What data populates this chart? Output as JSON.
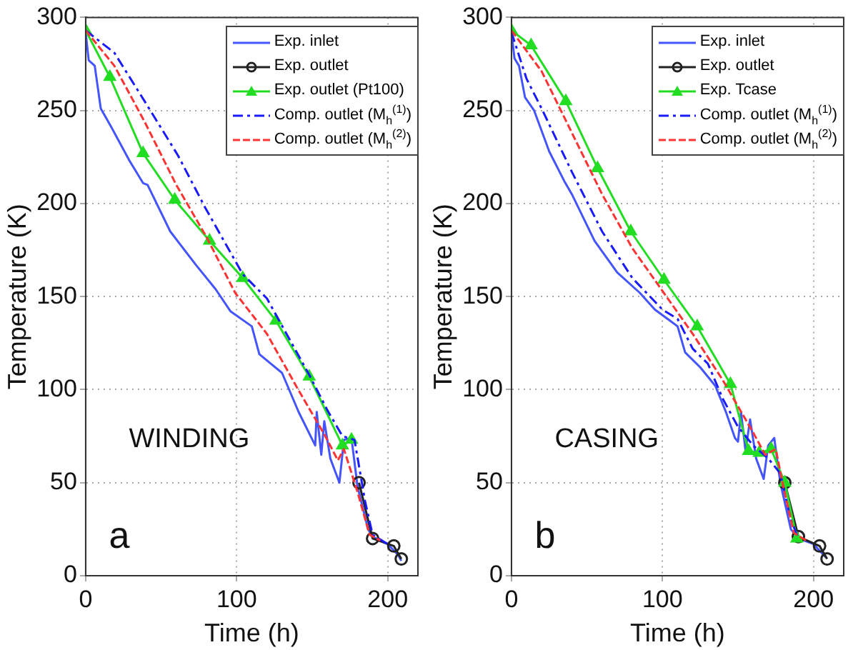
{
  "chart_data": [
    {
      "type": "line",
      "xlabel": "Time (h)",
      "ylabel": "Temperature (K)",
      "xlim": [
        0,
        220
      ],
      "ylim": [
        0,
        300
      ],
      "xticks": [
        0,
        100,
        200
      ],
      "yticks": [
        0,
        50,
        100,
        150,
        200,
        250,
        300
      ],
      "grid": true,
      "legend": "top right",
      "annotations": [
        "WINDING",
        "a"
      ],
      "series": [
        {
          "name": "Exp. inlet",
          "color": "#4455ff",
          "marker": "none",
          "line_style": "solid",
          "x": [
            0,
            2,
            6,
            10,
            17,
            29,
            38,
            41,
            56,
            73,
            86,
            96,
            110,
            115,
            130,
            141,
            152,
            153,
            156,
            158,
            162,
            168,
            171,
            176,
            180,
            187,
            190,
            200,
            207,
            209
          ],
          "values": [
            292,
            277,
            274,
            251,
            241,
            223,
            211,
            210,
            185,
            167,
            154,
            142,
            134,
            119,
            109,
            88,
            70,
            88,
            65,
            83,
            63,
            50,
            73,
            74,
            48,
            25,
            21,
            17,
            11,
            8
          ]
        },
        {
          "name": "Exp. outlet",
          "color": "#222222",
          "marker": "circle",
          "line_style": "solid",
          "x": [
            181,
            190,
            204,
            209
          ],
          "values": [
            50,
            20,
            16,
            9
          ]
        },
        {
          "name": "Exp. outlet (Pt100)",
          "color": "#22dd22",
          "marker": "triangle",
          "line_style": "solid",
          "x": [
            0,
            16,
            38,
            59,
            82,
            104,
            126,
            148,
            170,
            176
          ],
          "values": [
            293,
            268,
            227,
            202,
            180,
            160,
            137,
            107,
            70,
            73
          ]
        },
        {
          "name": "Comp. outlet (M$_{h}$$^{(1)}$)",
          "color": "#1a1aff",
          "marker": "none",
          "line_style": "dashdot",
          "x": [
            0,
            19,
            39,
            61,
            79,
            104,
            120,
            148,
            160,
            170,
            178,
            185,
            190,
            200
          ],
          "values": [
            293,
            281,
            255,
            226,
            198,
            162,
            149,
            108,
            89,
            75,
            73,
            40,
            22,
            17
          ]
        },
        {
          "name": "Comp. outlet (M$_{h}$$^{(2)}$)",
          "color": "#ff3333",
          "marker": "none",
          "line_style": "dashed",
          "x": [
            0,
            19,
            39,
            60,
            80,
            99,
            120,
            140,
            158,
            167,
            171,
            180,
            188,
            195
          ],
          "values": [
            293,
            274,
            244,
            210,
            182,
            152,
            130,
            101,
            76,
            62,
            68,
            45,
            22,
            19
          ]
        }
      ]
    },
    {
      "type": "line",
      "xlabel": "Time (h)",
      "ylabel": "Temperature (K)",
      "xlim": [
        0,
        220
      ],
      "ylim": [
        0,
        300
      ],
      "xticks": [
        0,
        100,
        200
      ],
      "yticks": [
        0,
        50,
        100,
        150,
        200,
        250,
        300
      ],
      "grid": true,
      "legend": "top right",
      "annotations": [
        "CASING",
        "b"
      ],
      "series": [
        {
          "name": "Exp. inlet",
          "color": "#4455ff",
          "marker": "none",
          "line_style": "solid",
          "x": [
            0,
            2,
            5,
            9,
            15,
            25,
            35,
            40,
            55,
            70,
            85,
            95,
            105,
            110,
            115,
            125,
            135,
            142,
            148,
            150,
            152,
            155,
            158,
            162,
            167,
            170,
            174,
            178,
            185,
            190,
            200,
            208
          ],
          "values": [
            292,
            278,
            274,
            257,
            250,
            228,
            212,
            205,
            180,
            163,
            152,
            143,
            137,
            134,
            120,
            112,
            102,
            88,
            74,
            72,
            88,
            67,
            84,
            63,
            52,
            70,
            74,
            50,
            25,
            20,
            17,
            10
          ]
        },
        {
          "name": "Exp. outlet",
          "color": "#222222",
          "marker": "circle",
          "line_style": "solid",
          "x": [
            181,
            190,
            204,
            209
          ],
          "values": [
            50,
            21,
            16,
            9
          ]
        },
        {
          "name": "Exp. Tcase",
          "color": "#22dd22",
          "marker": "triangle",
          "line_style": "solid",
          "x": [
            0,
            13,
            36,
            57,
            79,
            101,
            123,
            145,
            157,
            164,
            172,
            181,
            189
          ],
          "values": [
            293,
            285,
            255,
            219,
            185,
            159,
            134,
            103,
            67,
            66,
            68,
            50,
            20
          ]
        },
        {
          "name": "Comp. outlet (M$_{h}$$^{(1)}$)",
          "color": "#1a1aff",
          "marker": "none",
          "line_style": "dashdot",
          "x": [
            0,
            10,
            20,
            40,
            60,
            80,
            100,
            110,
            120,
            130,
            140,
            150,
            160,
            170,
            178,
            185,
            190
          ],
          "values": [
            292,
            267,
            251,
            217,
            185,
            160,
            143,
            138,
            122,
            114,
            95,
            80,
            70,
            63,
            55,
            30,
            20
          ]
        },
        {
          "name": "Comp. outlet (M$_{h}$$^{(2)}$)",
          "color": "#ff3333",
          "marker": "none",
          "line_style": "dashed",
          "x": [
            0,
            20,
            40,
            60,
            80,
            100,
            120,
            140,
            150,
            160,
            168,
            175,
            180,
            187,
            195
          ],
          "values": [
            293,
            271,
            238,
            205,
            176,
            153,
            130,
            105,
            91,
            77,
            65,
            68,
            48,
            23,
            19
          ]
        }
      ]
    }
  ]
}
